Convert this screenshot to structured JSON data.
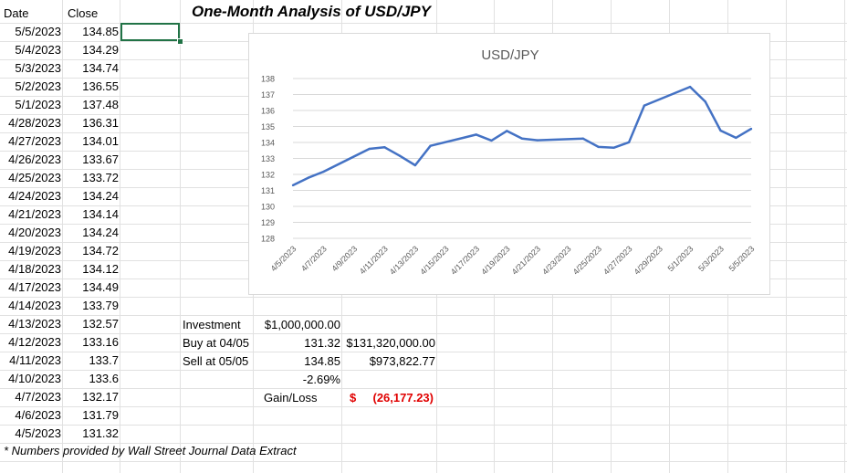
{
  "sheet": {
    "headers": {
      "date": "Date",
      "close": "Close"
    },
    "rows": [
      {
        "date": "5/5/2023",
        "close": "134.85"
      },
      {
        "date": "5/4/2023",
        "close": "134.29"
      },
      {
        "date": "5/3/2023",
        "close": "134.74"
      },
      {
        "date": "5/2/2023",
        "close": "136.55"
      },
      {
        "date": "5/1/2023",
        "close": "137.48"
      },
      {
        "date": "4/28/2023",
        "close": "136.31"
      },
      {
        "date": "4/27/2023",
        "close": "134.01"
      },
      {
        "date": "4/26/2023",
        "close": "133.67"
      },
      {
        "date": "4/25/2023",
        "close": "133.72"
      },
      {
        "date": "4/24/2023",
        "close": "134.24"
      },
      {
        "date": "4/21/2023",
        "close": "134.14"
      },
      {
        "date": "4/20/2023",
        "close": "134.24"
      },
      {
        "date": "4/19/2023",
        "close": "134.72"
      },
      {
        "date": "4/18/2023",
        "close": "134.12"
      },
      {
        "date": "4/17/2023",
        "close": "134.49"
      },
      {
        "date": "4/14/2023",
        "close": "133.79"
      },
      {
        "date": "4/13/2023",
        "close": "132.57"
      },
      {
        "date": "4/12/2023",
        "close": "133.16"
      },
      {
        "date": "4/11/2023",
        "close": "133.7"
      },
      {
        "date": "4/10/2023",
        "close": "133.6"
      },
      {
        "date": "4/7/2023",
        "close": "132.17"
      },
      {
        "date": "4/6/2023",
        "close": "131.79"
      },
      {
        "date": "4/5/2023",
        "close": "131.32"
      }
    ],
    "title": "One-Month Analysis of USD/JPY",
    "footnote": "* Numbers provided by Wall Street Journal Data Extract",
    "analysis": {
      "investment_label": "Investment",
      "investment_value": "$1,000,000.00",
      "buy_label": "Buy at 04/05",
      "buy_rate": "131.32",
      "buy_amount": "$131,320,000.00",
      "sell_label": "Sell at 05/05",
      "sell_rate": "134.85",
      "sell_amount": "$973,822.77",
      "change_pct": "-2.69%",
      "gain_loss_label": "Gain/Loss",
      "gain_loss_currency": "$",
      "gain_loss_value": "(26,177.23)"
    }
  },
  "chart_data": {
    "type": "line",
    "title": "USD/JPY",
    "xlabel": "",
    "ylabel": "",
    "ylim": [
      128,
      138
    ],
    "yticks": [
      "128",
      "129",
      "130",
      "131",
      "132",
      "133",
      "134",
      "135",
      "136",
      "137",
      "138"
    ],
    "xticks": [
      "4/5/2023",
      "4/7/2023",
      "4/9/2023",
      "4/11/2023",
      "4/13/2023",
      "4/15/2023",
      "4/17/2023",
      "4/19/2023",
      "4/21/2023",
      "4/23/2023",
      "4/25/2023",
      "4/27/2023",
      "4/29/2023",
      "5/1/2023",
      "5/3/2023",
      "5/5/2023"
    ],
    "color": "#4472c4",
    "series": [
      {
        "name": "Close",
        "x": [
          "4/5/2023",
          "4/6/2023",
          "4/7/2023",
          "4/10/2023",
          "4/11/2023",
          "4/12/2023",
          "4/13/2023",
          "4/14/2023",
          "4/17/2023",
          "4/18/2023",
          "4/19/2023",
          "4/20/2023",
          "4/21/2023",
          "4/24/2023",
          "4/25/2023",
          "4/26/2023",
          "4/27/2023",
          "4/28/2023",
          "5/1/2023",
          "5/2/2023",
          "5/3/2023",
          "5/4/2023",
          "5/5/2023"
        ],
        "x_day": [
          0,
          1,
          2,
          5,
          6,
          7,
          8,
          9,
          12,
          13,
          14,
          15,
          16,
          19,
          20,
          21,
          22,
          23,
          26,
          27,
          28,
          29,
          30
        ],
        "values": [
          131.32,
          131.79,
          132.17,
          133.6,
          133.7,
          133.16,
          132.57,
          133.79,
          134.49,
          134.12,
          134.72,
          134.24,
          134.14,
          134.24,
          133.72,
          133.67,
          134.01,
          136.31,
          137.48,
          136.55,
          134.74,
          134.29,
          134.85
        ]
      }
    ]
  }
}
